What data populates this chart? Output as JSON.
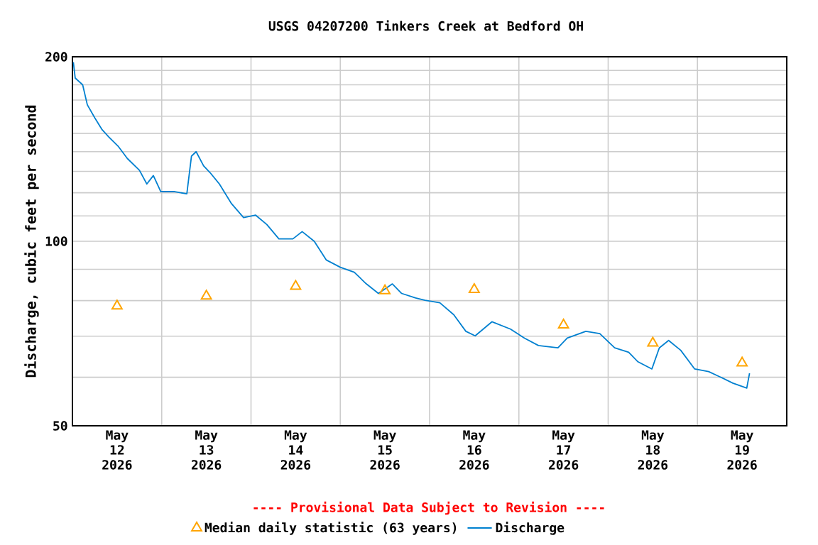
{
  "chart_data": {
    "type": "line",
    "title": "USGS 04207200 Tinkers Creek at Bedford OH",
    "ylabel": "Discharge, cubic feet per second",
    "annotations": [
      "---- Provisional Data Subject to Revision ----"
    ],
    "log": "y",
    "grid": true,
    "legend": "bottom",
    "xlim": [
      "2026-05-12T00:00",
      "2026-05-20T00:00"
    ],
    "xticks": [
      {
        "value": "2026-05-12T12:00",
        "label": "May 12 2026"
      },
      {
        "value": "2026-05-13T00:00",
        "label": null
      },
      {
        "value": "2026-05-13T12:00",
        "label": "May 13 2026"
      },
      {
        "value": "2026-05-14T00:00",
        "label": null
      },
      {
        "value": "2026-05-14T12:00",
        "label": "May 14 2026"
      },
      {
        "value": "2026-05-15T00:00",
        "label": null
      },
      {
        "value": "2026-05-15T12:00",
        "label": "May 15 2026"
      },
      {
        "value": "2026-05-16T00:00",
        "label": null
      },
      {
        "value": "2026-05-16T12:00",
        "label": "May 16 2026"
      },
      {
        "value": "2026-05-17T00:00",
        "label": null
      },
      {
        "value": "2026-05-17T12:00",
        "label": "May 17 2026"
      },
      {
        "value": "2026-05-18T00:00",
        "label": null
      },
      {
        "value": "2026-05-18T12:00",
        "label": "May 18 2026"
      },
      {
        "value": "2026-05-19T00:00",
        "label": null
      },
      {
        "value": "2026-05-19T12:00",
        "label": "May 19 2026"
      }
    ],
    "ylim": [
      50,
      200
    ],
    "yticks": [
      50,
      {
        "value": 60,
        "label": null
      },
      {
        "value": 70,
        "label": null
      },
      {
        "value": 80,
        "label": null
      },
      {
        "value": 90,
        "label": null
      },
      100,
      {
        "value": 110,
        "label": null
      },
      {
        "value": 120,
        "label": null
      },
      {
        "value": 130,
        "label": null
      },
      {
        "value": 140,
        "label": null
      },
      {
        "value": 150,
        "label": null
      },
      {
        "value": 160,
        "label": null
      },
      {
        "value": 170,
        "label": null
      },
      {
        "value": 180,
        "label": null
      },
      {
        "value": 190,
        "label": null
      },
      200
    ],
    "series": [
      {
        "name": "Median daily statistic (63 years)",
        "type": "scatter",
        "marker": "triangle",
        "color": "#ffa500",
        "x": [
          "2026-05-12T12:00",
          "2026-05-13T12:00",
          "2026-05-14T12:00",
          "2026-05-15T12:00",
          "2026-05-16T12:00",
          "2026-05-17T12:00",
          "2026-05-18T12:00",
          "2026-05-19T12:00"
        ],
        "values": [
          78.4,
          81.4,
          84.4,
          83.0,
          83.4,
          73.0,
          68.2,
          63.3
        ]
      },
      {
        "name": "Discharge",
        "type": "line",
        "color": "#0080d0",
        "x": [
          "2026-05-12T00:15",
          "2026-05-12T00:45",
          "2026-05-12T02:45",
          "2026-05-12T04:00",
          "2026-05-12T06:00",
          "2026-05-12T08:00",
          "2026-05-12T09:45",
          "2026-05-12T12:15",
          "2026-05-12T14:45",
          "2026-05-12T18:00",
          "2026-05-12T20:00",
          "2026-05-12T21:45",
          "2026-05-12T23:45",
          "2026-05-13T03:30",
          "2026-05-13T06:45",
          "2026-05-13T08:00",
          "2026-05-13T09:15",
          "2026-05-13T11:15",
          "2026-05-13T13:00",
          "2026-05-13T15:30",
          "2026-05-13T18:45",
          "2026-05-13T22:00",
          "2026-05-14T01:15",
          "2026-05-14T04:15",
          "2026-05-14T07:30",
          "2026-05-14T11:15",
          "2026-05-14T13:45",
          "2026-05-14T17:00",
          "2026-05-14T20:15",
          "2026-05-15T00:00",
          "2026-05-15T03:45",
          "2026-05-15T07:00",
          "2026-05-15T10:15",
          "2026-05-15T14:00",
          "2026-05-15T16:30",
          "2026-05-15T20:15",
          "2026-05-15T22:45",
          "2026-05-16T02:45",
          "2026-05-16T06:30",
          "2026-05-16T09:45",
          "2026-05-16T12:15",
          "2026-05-16T16:45",
          "2026-05-16T21:45",
          "2026-05-17T01:30",
          "2026-05-17T05:15",
          "2026-05-17T10:30",
          "2026-05-17T13:00",
          "2026-05-17T18:00",
          "2026-05-17T21:45",
          "2026-05-18T01:45",
          "2026-05-18T05:30",
          "2026-05-18T08:00",
          "2026-05-18T11:45",
          "2026-05-18T13:45",
          "2026-05-18T16:15",
          "2026-05-18T19:30",
          "2026-05-18T23:15",
          "2026-05-19T03:00",
          "2026-05-19T05:30",
          "2026-05-19T09:30",
          "2026-05-19T13:15",
          "2026-05-19T14:00"
        ],
        "values": [
          196,
          184.6,
          180,
          167,
          159,
          152,
          148,
          143,
          136.5,
          130.6,
          124,
          128,
          120.5,
          120.5,
          119.5,
          137.7,
          140,
          132.8,
          129.4,
          124,
          115.2,
          109.3,
          110.3,
          106.5,
          100.9,
          100.9,
          103.7,
          100,
          93.2,
          90.7,
          89.0,
          85.2,
          82.2,
          85.2,
          82.2,
          80.8,
          80.1,
          79.4,
          75.9,
          71.3,
          70.1,
          73.9,
          71.9,
          69.5,
          67.6,
          67.0,
          69.5,
          71.3,
          70.7,
          67.0,
          65.9,
          63.6,
          61.9,
          67.0,
          68.9,
          66.4,
          61.9,
          61.3,
          60.3,
          58.7,
          57.6,
          60.9
        ]
      }
    ]
  }
}
